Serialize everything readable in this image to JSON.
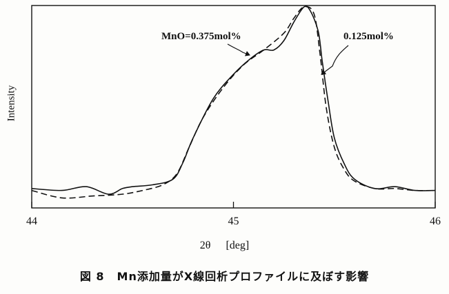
{
  "chart_data": {
    "type": "line",
    "xlabel": "2θ",
    "xlabel_unit": "[deg]",
    "ylabel": "Intensity",
    "xlim": [
      44,
      46
    ],
    "ylim": [
      0,
      1
    ],
    "xticks": [
      "44",
      "45",
      "46"
    ],
    "grid": false,
    "legend": "annotations",
    "series": [
      {
        "name": "MnO=0.375mol%",
        "style": "solid",
        "x": [
          44.0,
          44.15,
          44.27,
          44.38,
          44.45,
          44.5,
          44.6,
          44.7,
          44.75,
          44.8,
          44.9,
          45.0,
          45.08,
          45.15,
          45.2,
          45.25,
          45.3,
          45.35,
          45.38,
          45.42,
          45.44,
          45.47,
          45.5,
          45.55,
          45.6,
          45.7,
          45.8,
          45.9,
          46.0
        ],
        "y": [
          0.03,
          0.02,
          0.04,
          0.0,
          0.03,
          0.04,
          0.05,
          0.08,
          0.17,
          0.3,
          0.51,
          0.64,
          0.72,
          0.77,
          0.77,
          0.82,
          0.92,
          1.0,
          0.98,
          0.87,
          0.71,
          0.49,
          0.3,
          0.16,
          0.08,
          0.03,
          0.04,
          0.02,
          0.02
        ]
      },
      {
        "name": "0.125mol%",
        "style": "dashed",
        "x": [
          44.0,
          44.15,
          44.3,
          44.45,
          44.55,
          44.65,
          44.72,
          44.78,
          44.85,
          44.95,
          45.05,
          45.15,
          45.25,
          45.3,
          45.35,
          45.4,
          45.43,
          45.46,
          45.5,
          45.55,
          45.6,
          45.7,
          45.8,
          45.9,
          46.0
        ],
        "y": [
          0.02,
          -0.02,
          -0.01,
          0.0,
          0.02,
          0.05,
          0.11,
          0.25,
          0.41,
          0.57,
          0.69,
          0.77,
          0.86,
          0.94,
          1.0,
          0.96,
          0.74,
          0.46,
          0.25,
          0.13,
          0.07,
          0.03,
          0.03,
          0.02,
          0.02
        ]
      }
    ],
    "annotations": [
      {
        "text": "MnO=0.375mol%",
        "series": 0
      },
      {
        "text": "0.125mol%",
        "series": 1
      }
    ],
    "colors": {
      "line": "#111111",
      "background": "#fdfdfb"
    }
  },
  "caption": {
    "figure_no": "図 8",
    "text": "Mn添加量がX線回析プロファイルに及ぼす影響"
  }
}
